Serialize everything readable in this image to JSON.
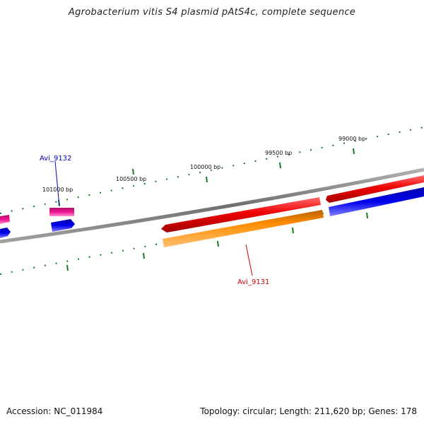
{
  "title": "Agrobacterium vitis S4 plasmid pAtS4c, complete sequence",
  "accession_text": "Accession: NC_011984",
  "stats_text": "Topology: circular; Length: 211,620 bp; Genes: 178",
  "colors": {
    "backbone": "#808080",
    "tick": "#1a7a1a",
    "red": "#ee0000",
    "orange": "#ff8c00",
    "blue": "#0000ee",
    "pink": "#ee1493",
    "label_red": "#cc0000",
    "label_blue": "#0000bb"
  },
  "bp_labels": [
    "99000 bp",
    "99500 bp",
    "100000 bp",
    "100500 bp",
    "101000 bp"
  ],
  "gene_labels": [
    {
      "text": "Avi_9131",
      "color": "label_red"
    },
    {
      "text": "Avi_9132",
      "color": "label_blue"
    }
  ]
}
